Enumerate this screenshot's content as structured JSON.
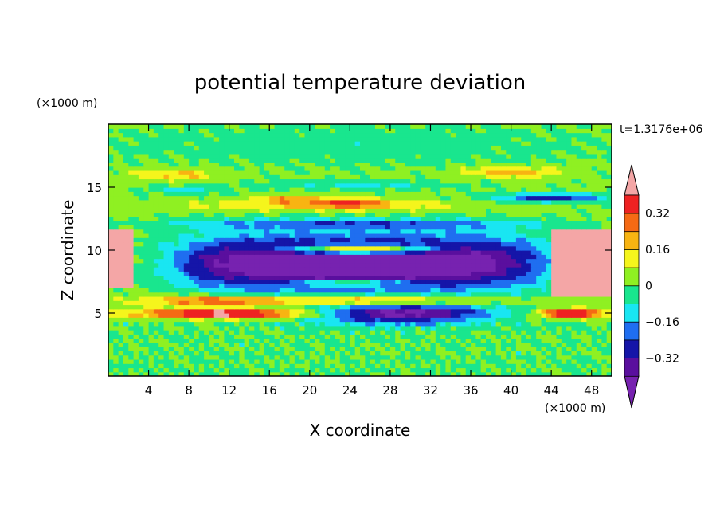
{
  "chart_data": {
    "type": "heatmap",
    "title": "potential temperature deviation",
    "xlabel": "X coordinate",
    "ylabel": "Z coordinate",
    "x_unit": "(×1000 m)",
    "y_unit": "(×1000 m)",
    "time_label": "t=1.3176e+06",
    "xlim": [
      0,
      50
    ],
    "ylim": [
      0,
      20
    ],
    "x_ticks": [
      4,
      8,
      12,
      16,
      20,
      24,
      28,
      32,
      36,
      40,
      44,
      48
    ],
    "y_ticks": [
      5,
      10,
      15
    ],
    "x_tick_labels": [
      "4",
      "8",
      "12",
      "16",
      "20",
      "24",
      "28",
      "32",
      "36",
      "40",
      "44",
      "48"
    ],
    "y_tick_labels": [
      "5",
      "10",
      "15"
    ],
    "colorbar": {
      "levels": [
        -0.4,
        -0.32,
        -0.24,
        -0.16,
        -0.08,
        0,
        0.08,
        0.16,
        0.24,
        0.32,
        0.4
      ],
      "colors": [
        "#5a0f9e",
        "#1515a8",
        "#1f6ef0",
        "#19e6f2",
        "#19e68e",
        "#8ff022",
        "#f5f51c",
        "#f8b412",
        "#f56a14",
        "#ee2222"
      ],
      "under_color": "#7722b0",
      "over_color": "#f4a6a6",
      "tick_values": [
        0.32,
        0.16,
        0,
        -0.16,
        -0.32
      ],
      "tick_labels": [
        "0.32",
        "0.16",
        "0",
        "−0.16",
        "−0.32"
      ]
    }
  }
}
